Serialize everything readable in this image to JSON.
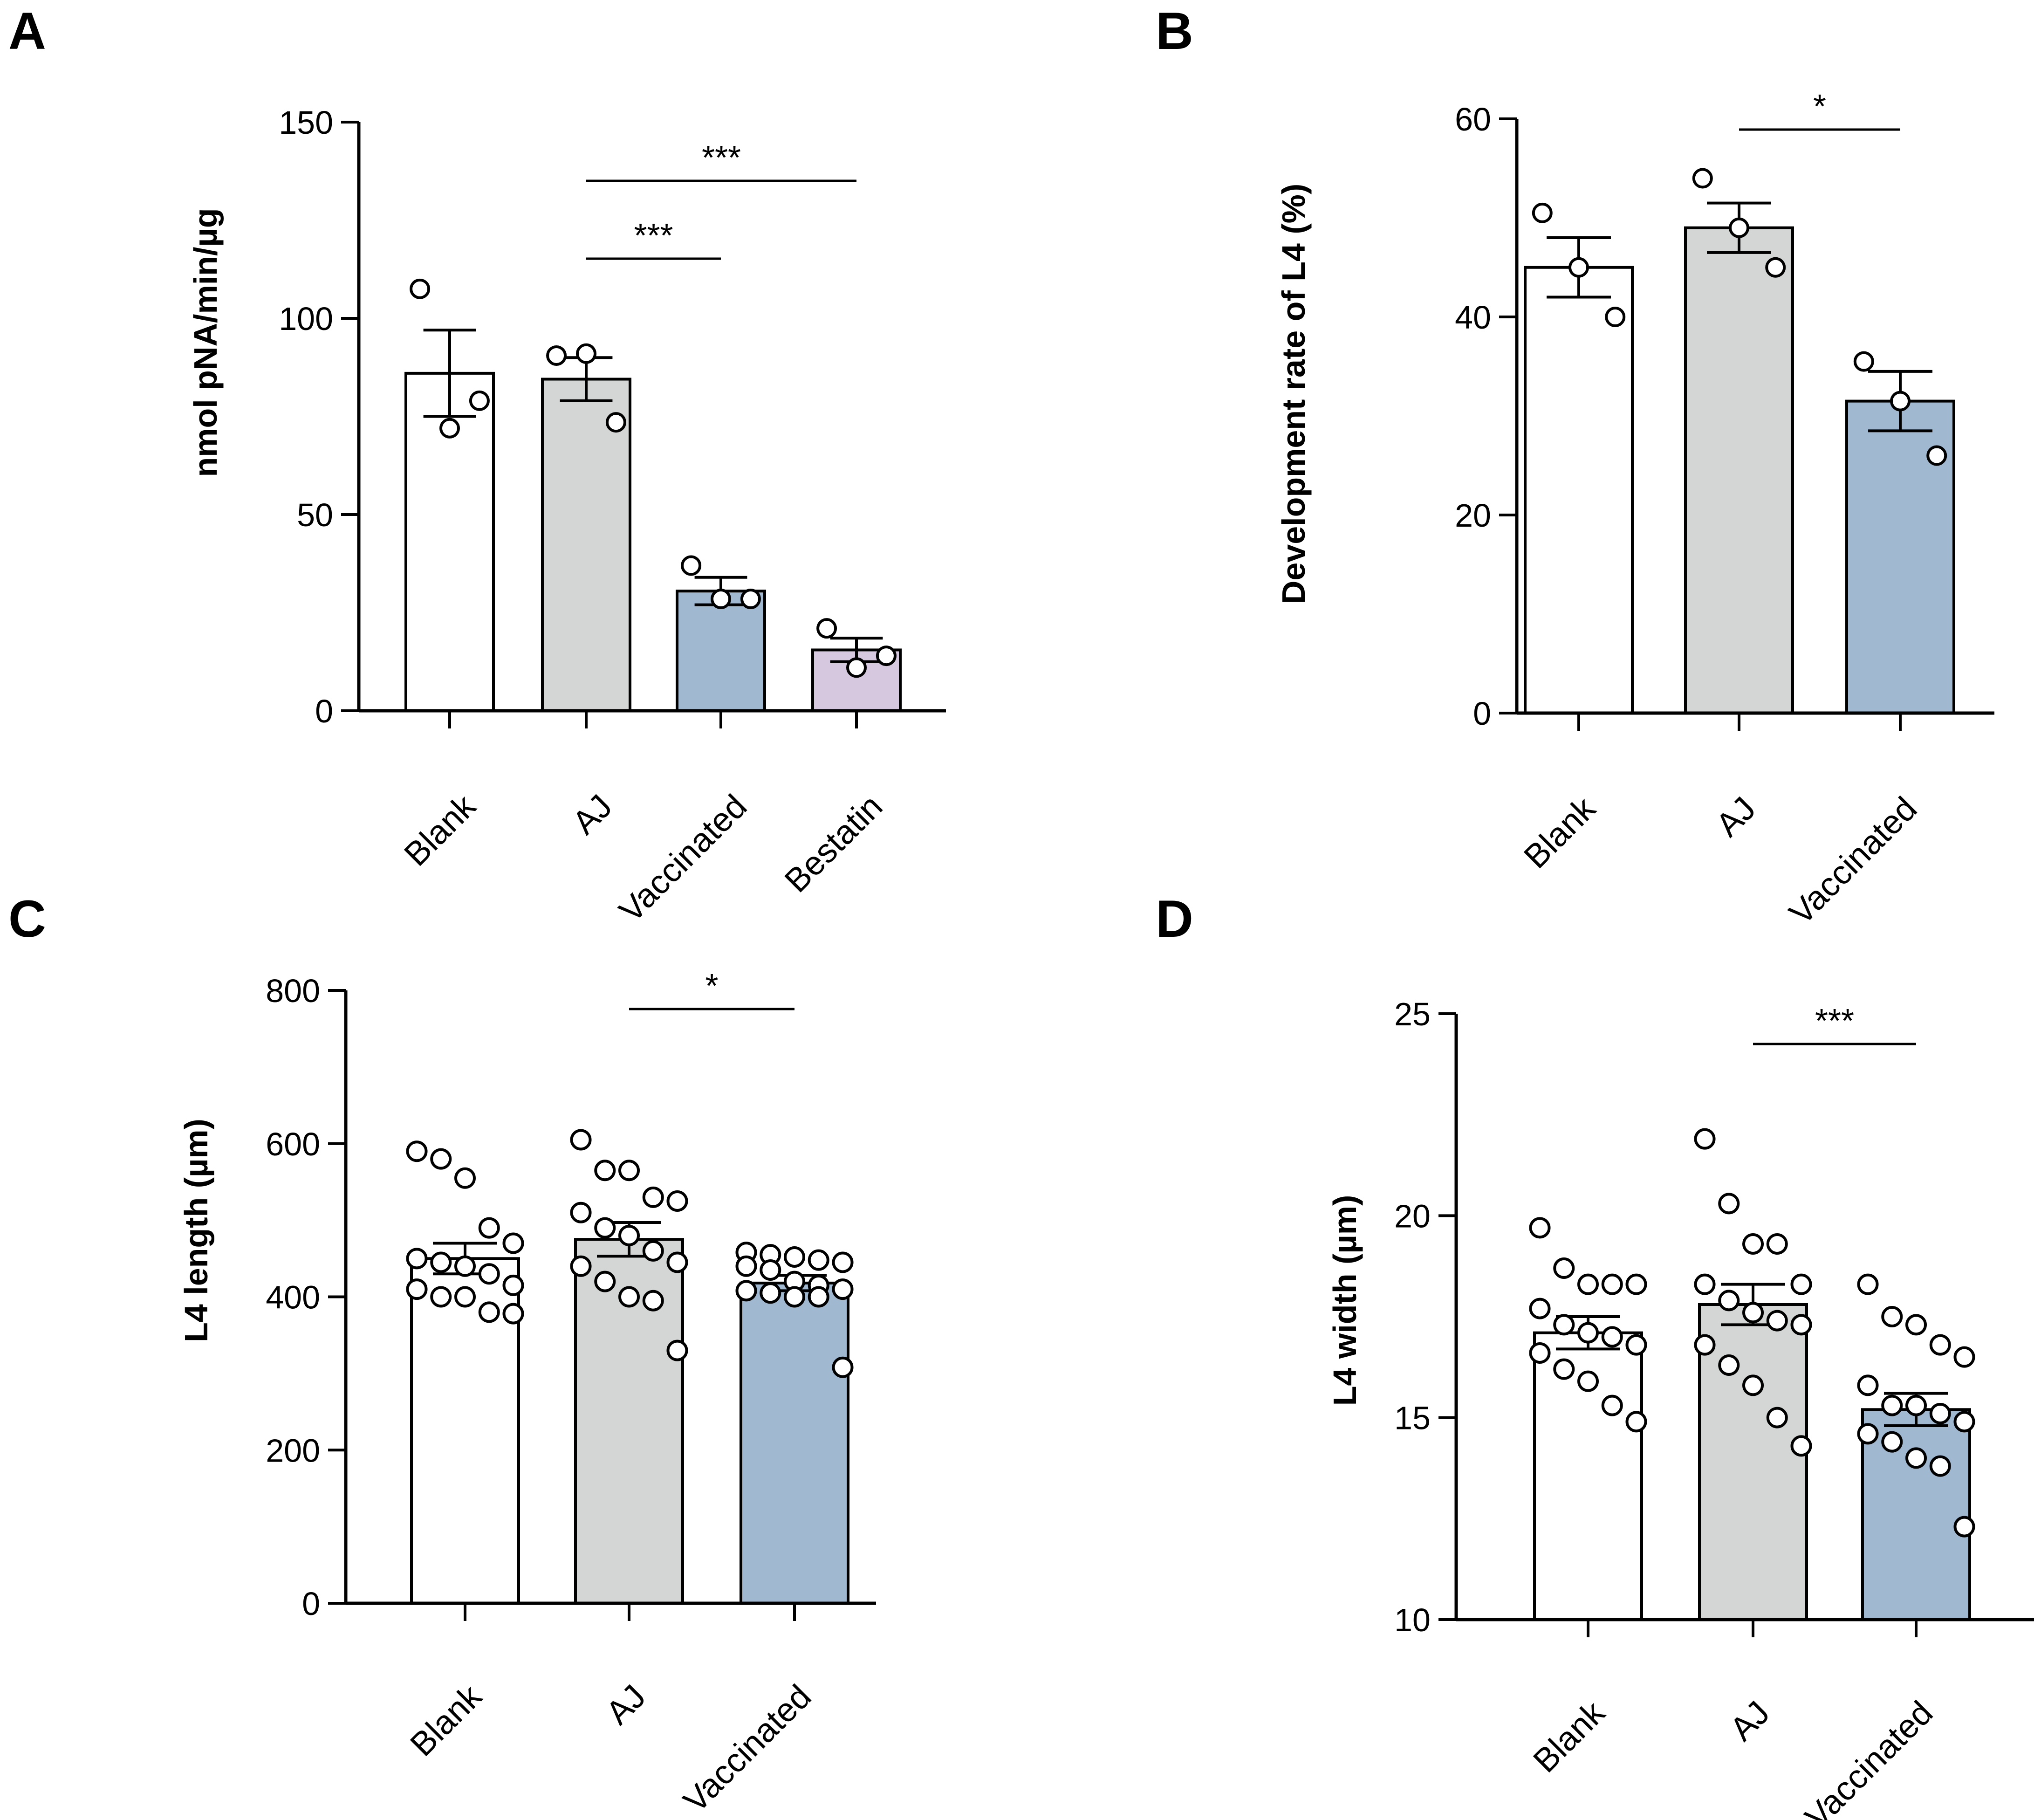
{
  "chart_data": [
    {
      "type": "bar",
      "panel": "A",
      "categories": [
        "Blank",
        "AJ",
        "Vaccinated",
        "Bestatin"
      ],
      "values": [
        86,
        84.5,
        30.5,
        15.5
      ],
      "sem": [
        11,
        5.5,
        3.5,
        3
      ],
      "points": [
        [
          107.5,
          72,
          79
        ],
        [
          90.5,
          91,
          73.5
        ],
        [
          37,
          28.5,
          28.5
        ],
        [
          21,
          11,
          14
        ]
      ],
      "bar_colors": [
        "#ffffff",
        "#d4d6d5",
        "#a0b8d0",
        "#d6c8de"
      ],
      "xlabel": "",
      "ylabel": "nmol pNA/min/µg",
      "ylim": [
        0,
        150
      ],
      "yticks": [
        0,
        50,
        100,
        150
      ],
      "significance": [
        {
          "from": 1,
          "to": 2,
          "label": "***"
        },
        {
          "from": 1,
          "to": 3,
          "label": "***"
        }
      ]
    },
    {
      "type": "bar",
      "panel": "B",
      "categories": [
        "Blank",
        "AJ",
        "Vaccinated"
      ],
      "values": [
        45,
        49,
        31.5
      ],
      "sem": [
        3,
        2.5,
        3
      ],
      "points": [
        [
          50.5,
          45,
          40
        ],
        [
          54,
          49,
          45
        ],
        [
          35.5,
          31.5,
          26
        ]
      ],
      "bar_colors": [
        "#ffffff",
        "#d4d6d5",
        "#a0b8d0"
      ],
      "xlabel": "",
      "ylabel": "Development rate of L4 (%)",
      "ylim": [
        0,
        60
      ],
      "yticks": [
        0,
        20,
        40,
        60
      ],
      "significance": [
        {
          "from": 1,
          "to": 2,
          "label": "*"
        }
      ]
    },
    {
      "type": "bar",
      "panel": "C",
      "categories": [
        "Blank",
        "AJ",
        "Vaccinated"
      ],
      "values": [
        450,
        475,
        418
      ],
      "sem": [
        20,
        22,
        10
      ],
      "points": [
        [
          590,
          580,
          555,
          490,
          470,
          450,
          445,
          440,
          430,
          415,
          410,
          400,
          400,
          380,
          378
        ],
        [
          605,
          565,
          565,
          530,
          525,
          510,
          490,
          480,
          460,
          445,
          440,
          420,
          400,
          395,
          330
        ],
        [
          458,
          455,
          452,
          448,
          445,
          440,
          435,
          420,
          415,
          410,
          408,
          405,
          400,
          400,
          308
        ]
      ],
      "bar_colors": [
        "#ffffff",
        "#d4d6d5",
        "#a0b8d0"
      ],
      "xlabel": "",
      "ylabel": "L4 length (µm)",
      "ylim": [
        0,
        800
      ],
      "yticks": [
        0,
        200,
        400,
        600,
        800
      ],
      "significance": [
        {
          "from": 1,
          "to": 2,
          "label": "*"
        }
      ]
    },
    {
      "type": "bar",
      "panel": "D",
      "categories": [
        "Blank",
        "AJ",
        "Vaccinated"
      ],
      "values": [
        17.1,
        17.8,
        15.2
      ],
      "sem": [
        0.4,
        0.5,
        0.4
      ],
      "points": [
        [
          19.7,
          18.7,
          18.3,
          18.3,
          18.3,
          17.7,
          17.3,
          17.1,
          17.0,
          16.8,
          16.6,
          16.2,
          15.9,
          15.3,
          14.9
        ],
        [
          21.9,
          20.3,
          19.3,
          19.3,
          18.3,
          18.3,
          17.9,
          17.6,
          17.4,
          17.3,
          16.8,
          16.3,
          15.8,
          15.0,
          14.3
        ],
        [
          18.3,
          17.5,
          17.3,
          16.8,
          16.5,
          15.8,
          15.3,
          15.3,
          15.1,
          14.9,
          14.6,
          14.4,
          14.0,
          13.8,
          12.3
        ]
      ],
      "bar_colors": [
        "#ffffff",
        "#d4d6d5",
        "#a0b8d0"
      ],
      "xlabel": "",
      "ylabel": "L4 width (µm)",
      "ylim": [
        10,
        25
      ],
      "yticks": [
        10,
        15,
        20,
        25
      ],
      "significance": [
        {
          "from": 1,
          "to": 2,
          "label": "***"
        }
      ]
    }
  ]
}
